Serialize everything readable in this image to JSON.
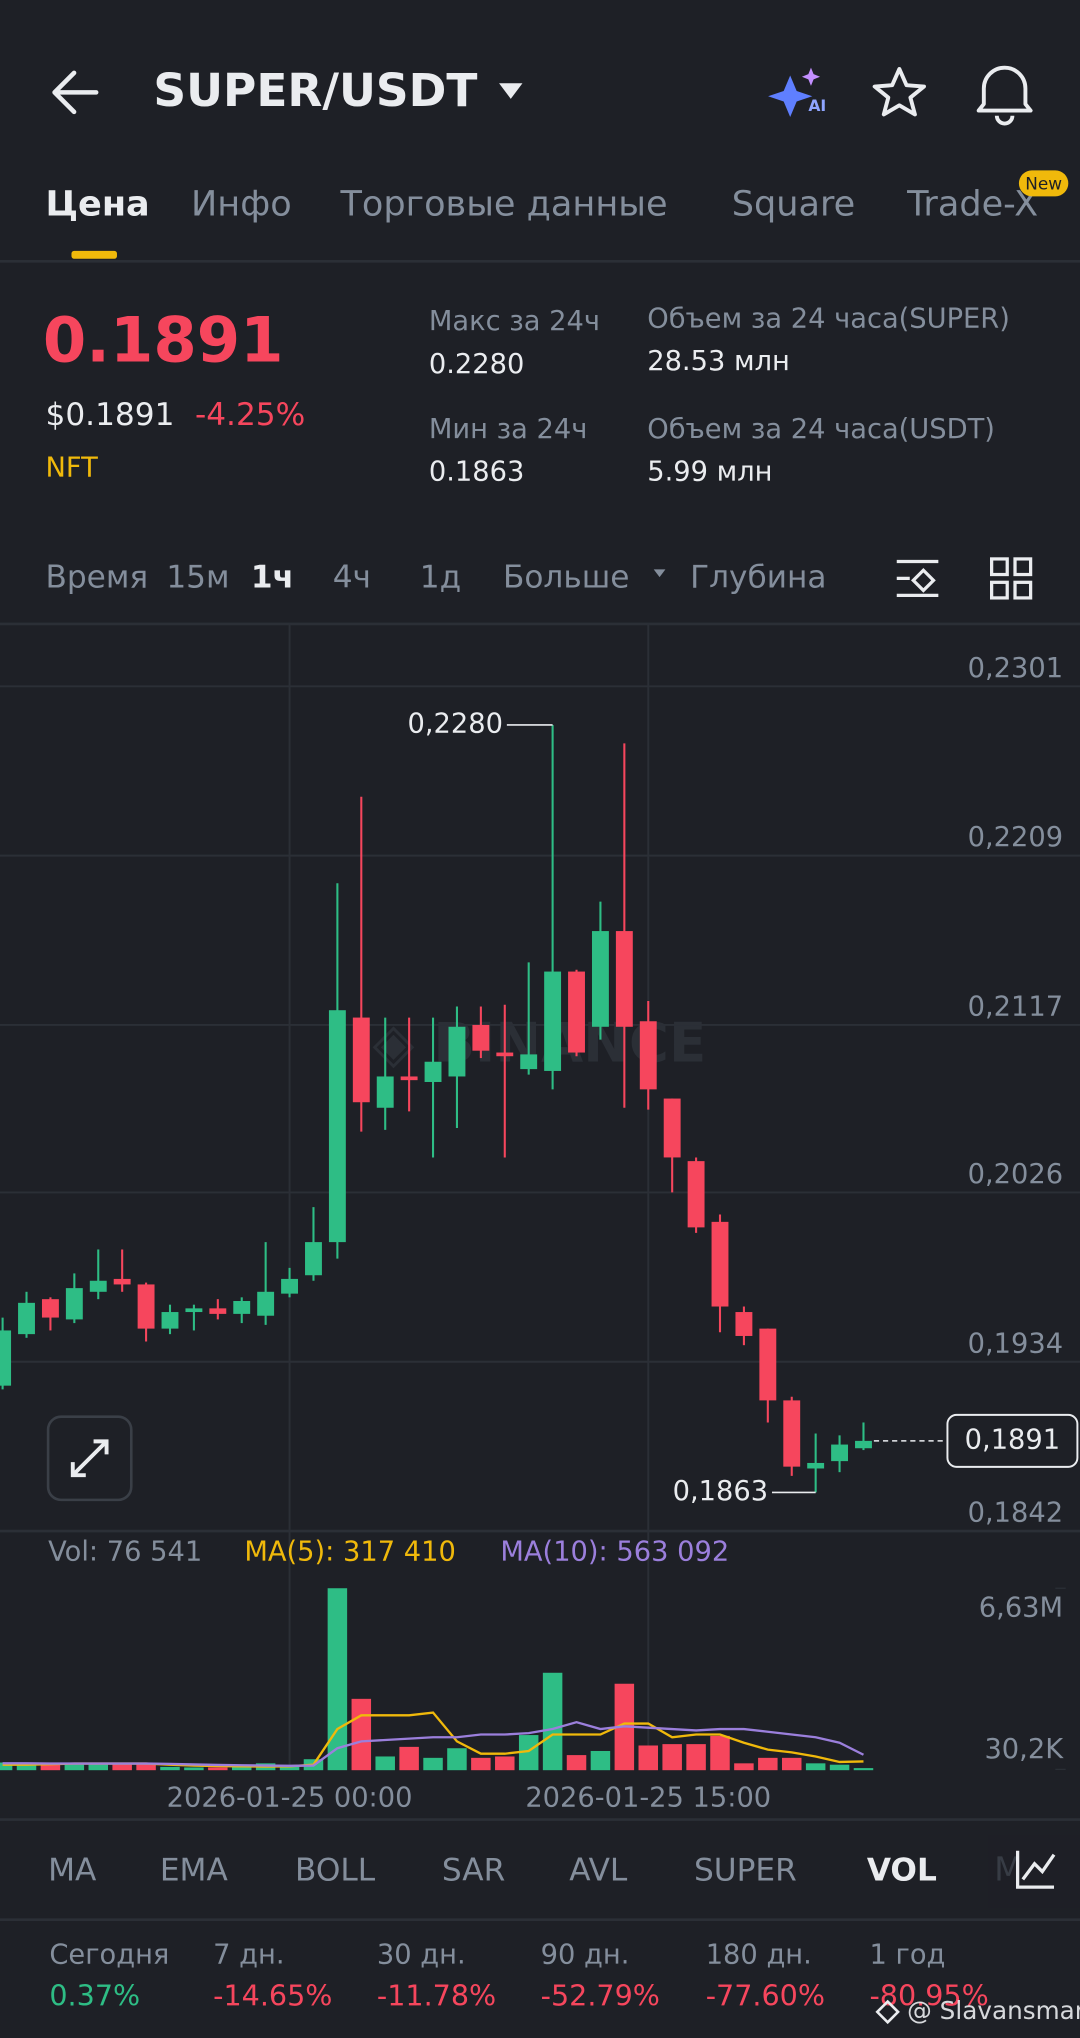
{
  "header": {
    "title": "SUPER/USDT"
  },
  "tabs": [
    "Цена",
    "Инфо",
    "Торговые данные",
    "Square",
    "Trade-X"
  ],
  "tab_badge": "New",
  "ticker": {
    "price": "0.1891",
    "usd_price": "$0.1891",
    "change": "-4.25%",
    "tag": "NFT",
    "stats": [
      {
        "label": "Макс за 24ч",
        "value": "0.2280"
      },
      {
        "label": "Мин за 24ч",
        "value": "0.1863"
      },
      {
        "label": "Объем за 24 часа(SUPER)",
        "value": "28.53 млн"
      },
      {
        "label": "Объем за 24 часа(USDT)",
        "value": "5.99 млн"
      }
    ]
  },
  "intervals": [
    "Время",
    "15м",
    "1ч",
    "4ч",
    "1д",
    "Больше",
    "Глубина"
  ],
  "chart_data": {
    "type": "candlestick",
    "up_color": "#2ebd85",
    "down_color": "#f6465d",
    "categories": [
      null,
      null,
      null,
      null,
      null,
      null,
      null,
      null,
      null,
      null,
      null,
      null,
      "2026-01-25 00:00",
      null,
      null,
      null,
      null,
      null,
      null,
      null,
      null,
      null,
      null,
      null,
      null,
      null,
      null,
      "2026-01-25 15:00",
      null,
      null,
      null,
      null,
      null,
      null,
      null,
      null,
      null
    ],
    "open": [
      0.1921,
      0.1949,
      0.1968,
      0.1957,
      0.1972,
      0.1979,
      0.1976,
      0.1952,
      0.1961,
      0.1963,
      0.196,
      0.1959,
      0.1971,
      0.1981,
      0.1999,
      0.2121,
      0.2072,
      0.2089,
      0.2086,
      0.2089,
      0.2117,
      0.2102,
      0.2093,
      0.2092,
      0.2146,
      0.2116,
      0.2168,
      0.2119,
      0.2077,
      0.2043,
      0.201,
      0.1961,
      0.1952,
      0.1913,
      0.1876,
      0.188,
      0.1887
    ],
    "high": [
      0.1958,
      0.1972,
      0.1969,
      0.1982,
      0.1995,
      0.1995,
      0.1977,
      0.1965,
      0.1965,
      0.1968,
      0.1969,
      0.1999,
      0.1985,
      0.2018,
      0.2194,
      0.2241,
      0.2121,
      0.2121,
      0.2121,
      0.2127,
      0.2127,
      0.2128,
      0.2151,
      0.228,
      0.2147,
      0.2184,
      0.227,
      0.213,
      0.2077,
      0.2045,
      0.2014,
      0.1964,
      0.1952,
      0.1915,
      0.1895,
      0.1894,
      0.1901
    ],
    "low": [
      0.1919,
      0.1947,
      0.1951,
      0.1955,
      0.1968,
      0.1972,
      0.1945,
      0.1949,
      0.1951,
      0.1957,
      0.1955,
      0.1954,
      0.1969,
      0.1978,
      0.199,
      0.2059,
      0.206,
      0.207,
      0.2045,
      0.2061,
      0.2099,
      0.2045,
      0.209,
      0.2082,
      0.21,
      0.2109,
      0.2072,
      0.2071,
      0.2026,
      0.2004,
      0.195,
      0.1943,
      0.1901,
      0.1872,
      0.1863,
      0.1874,
      0.1886
    ],
    "close": [
      0.1951,
      0.1966,
      0.1958,
      0.1974,
      0.1978,
      0.1976,
      0.1952,
      0.1961,
      0.1963,
      0.196,
      0.1967,
      0.1972,
      0.1979,
      0.1999,
      0.2125,
      0.2075,
      0.2089,
      0.2087,
      0.2097,
      0.2116,
      0.2103,
      0.21,
      0.2101,
      0.2146,
      0.2102,
      0.2168,
      0.2116,
      0.2082,
      0.2045,
      0.2007,
      0.1964,
      0.1948,
      0.1913,
      0.1877,
      0.1879,
      0.1889,
      0.1891
    ],
    "ylim": [
      0.1842,
      0.2301
    ],
    "yticks": [
      {
        "value": 0.2301,
        "label": "0,2301"
      },
      {
        "value": 0.2209,
        "label": "0,2209"
      },
      {
        "value": 0.2117,
        "label": "0,2117"
      },
      {
        "value": 0.2026,
        "label": "0,2026"
      },
      {
        "value": 0.1934,
        "label": "0,1934"
      },
      {
        "value": 0.1842,
        "label": "0,1842"
      }
    ],
    "max_label": {
      "value": 0.228,
      "label": "0,2280"
    },
    "min_label": {
      "value": 0.1863,
      "label": "0,1863"
    },
    "current": {
      "value": 0.1891,
      "label": "0,1891"
    },
    "volume": {
      "values": [
        280000,
        240000,
        220000,
        240000,
        220000,
        260000,
        250000,
        120000,
        100000,
        100000,
        120000,
        250000,
        120000,
        400000,
        6630000,
        2600000,
        500000,
        850000,
        450000,
        800000,
        450000,
        500000,
        1280000,
        3550000,
        550000,
        700000,
        3150000,
        900000,
        950000,
        950000,
        1250000,
        250000,
        450000,
        450000,
        250000,
        200000,
        76541
      ],
      "ma5": [
        200000,
        200000,
        220000,
        240000,
        240000,
        240000,
        240000,
        200000,
        170000,
        150000,
        140000,
        130000,
        140000,
        200000,
        1500000,
        2000000,
        2000000,
        2000000,
        2100000,
        1050000,
        600000,
        600000,
        700000,
        1300000,
        1300000,
        1300000,
        1700000,
        1700000,
        1200000,
        1300000,
        1300000,
        1000000,
        750000,
        650000,
        500000,
        300000,
        317410
      ],
      "ma10": [
        250000,
        250000,
        240000,
        240000,
        240000,
        240000,
        240000,
        230000,
        210000,
        190000,
        180000,
        170000,
        160000,
        170000,
        800000,
        1050000,
        1100000,
        1150000,
        1200000,
        1200000,
        1300000,
        1300000,
        1350000,
        1500000,
        1750000,
        1500000,
        1600000,
        1550000,
        1500000,
        1450000,
        1500000,
        1500000,
        1400000,
        1300000,
        1200000,
        1000000,
        563092
      ],
      "ma5_color": "#f0b90b",
      "ma10_color": "#9b7fdc",
      "ylim": [
        0,
        6630000
      ],
      "yticks": [
        {
          "value": 6630000,
          "label": "6,63M"
        },
        {
          "value": 30200,
          "label": "30,2K"
        }
      ],
      "legend": {
        "vol": "Vol: 76 541",
        "ma5": "MA(5): 317 410",
        "ma10": "MA(10): 563 092"
      }
    }
  },
  "indicators": [
    "MA",
    "EMA",
    "BOLL",
    "SAR",
    "AVL",
    "SUPER",
    "VOL"
  ],
  "performance": [
    {
      "label": "Сегодня",
      "value": "0.37%",
      "color": "#2ebd85"
    },
    {
      "label": "7 дн.",
      "value": "-14.65%",
      "color": "#f6465d"
    },
    {
      "label": "30 дн.",
      "value": "-11.78%",
      "color": "#f6465d"
    },
    {
      "label": "90 дн.",
      "value": "-52.79%",
      "color": "#f6465d"
    },
    {
      "label": "180 дн.",
      "value": "-77.60%",
      "color": "#f6465d"
    },
    {
      "label": "1 год",
      "value": "-80.95%",
      "color": "#f6465d"
    }
  ],
  "watermark": "@ Slavansmart"
}
